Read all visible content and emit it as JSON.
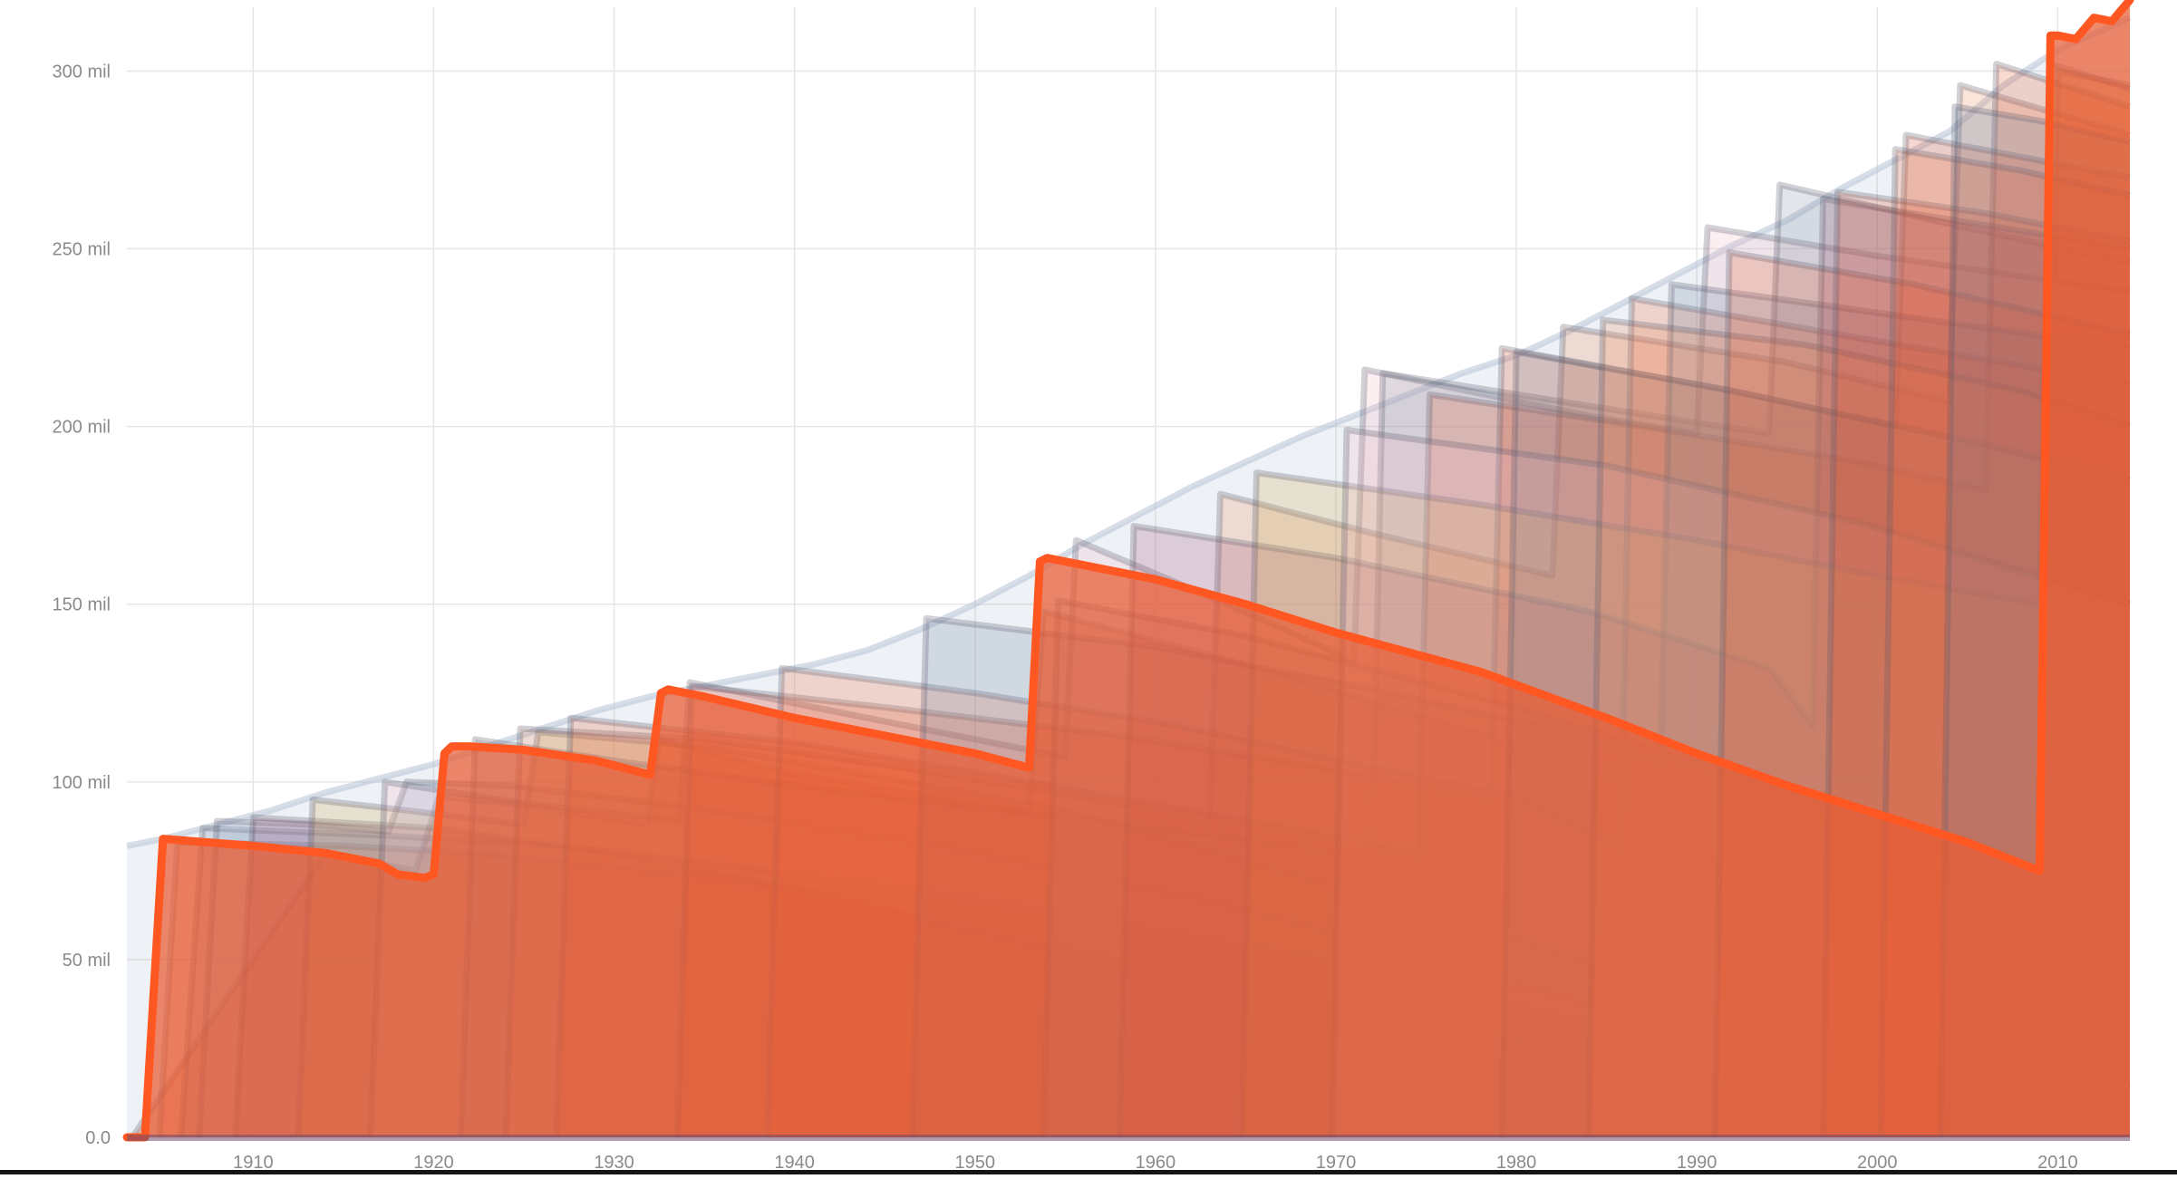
{
  "chart_data": {
    "type": "area",
    "title": "",
    "xlabel": "",
    "ylabel": "",
    "xlim": [
      1903,
      2014
    ],
    "ylim": [
      0,
      320000000
    ],
    "grid": true,
    "legend": "none",
    "x_ticks": [
      {
        "value": 1910,
        "label": "1910"
      },
      {
        "value": 1920,
        "label": "1920"
      },
      {
        "value": 1930,
        "label": "1930"
      },
      {
        "value": 1940,
        "label": "1940"
      },
      {
        "value": 1950,
        "label": "1950"
      },
      {
        "value": 1960,
        "label": "1960"
      },
      {
        "value": 1970,
        "label": "1970"
      },
      {
        "value": 1980,
        "label": "1980"
      },
      {
        "value": 1990,
        "label": "1990"
      },
      {
        "value": 2000,
        "label": "2000"
      },
      {
        "value": 2010,
        "label": "2010"
      }
    ],
    "y_ticks": [
      {
        "value": 0,
        "label": "0.0"
      },
      {
        "value": 50000000,
        "label": "50 mil"
      },
      {
        "value": 100000000,
        "label": "100 mil"
      },
      {
        "value": 150000000,
        "label": "150 mil"
      },
      {
        "value": 200000000,
        "label": "200 mil"
      },
      {
        "value": 250000000,
        "label": "250 mil"
      },
      {
        "value": 300000000,
        "label": "300 mil"
      }
    ],
    "colors": {
      "highlight": "#ff5722",
      "highlight_fill": "#e95b33",
      "grid": "#e6e6e6",
      "axis_text": "#8a8a8a",
      "background_series": [
        "#e4572e",
        "#d94f2b",
        "#f06a3c",
        "#6b7f9e",
        "#8aa0c8",
        "#9b4a6e",
        "#c9a24b",
        "#f3b8c4",
        "#7d8a9c",
        "#e88a5a"
      ]
    },
    "envelope": {
      "x": [
        1903,
        1905,
        1908,
        1911,
        1914,
        1917,
        1920,
        1923,
        1926,
        1929,
        1932,
        1935,
        1938,
        1941,
        1944,
        1947,
        1950,
        1953,
        1956,
        1959,
        1962,
        1965,
        1968,
        1971,
        1974,
        1977,
        1980,
        1983,
        1986,
        1989,
        1992,
        1995,
        1998,
        2001,
        2004,
        2007,
        2010,
        2014
      ],
      "y": [
        82000000,
        84000000,
        88000000,
        92000000,
        97000000,
        101000000,
        105000000,
        110000000,
        115000000,
        120000000,
        124000000,
        127000000,
        130000000,
        133000000,
        137000000,
        143000000,
        150000000,
        158000000,
        167000000,
        175000000,
        183000000,
        190000000,
        197000000,
        203000000,
        209000000,
        215000000,
        220000000,
        227000000,
        235000000,
        243000000,
        251000000,
        258000000,
        267000000,
        275000000,
        283000000,
        296000000,
        306000000,
        315000000
      ]
    },
    "series": [
      {
        "highlight": true,
        "x": [
          1903.0,
          1904.0,
          1905.0,
          1910.0,
          1914.0,
          1917.0,
          1918.0,
          1919.5,
          1920.0,
          1920.6,
          1921.0,
          1922.0,
          1925.0,
          1929.0,
          1932.0,
          1932.6,
          1933.0,
          1935.0,
          1940.0,
          1945.0,
          1950.0,
          1953.0,
          1953.6,
          1954.0,
          1960.0,
          1965.0,
          1970.0,
          1978.0,
          1985.0,
          1990.0,
          1995.0,
          2000.0,
          2005.0,
          2009.0,
          2009.6,
          2010.0,
          2011.0,
          2012.0,
          2013.0,
          2014.0
        ],
        "y": [
          0,
          0,
          84000000,
          82000000,
          80000000,
          77000000,
          74000000,
          73000000,
          74000000,
          108000000,
          110000000,
          110000000,
          109000000,
          106000000,
          102000000,
          125000000,
          126000000,
          124000000,
          118000000,
          113000000,
          108000000,
          104000000,
          162000000,
          163000000,
          157000000,
          150000000,
          142000000,
          131000000,
          118000000,
          108000000,
          99000000,
          91000000,
          83000000,
          75000000,
          310000000,
          310000000,
          309000000,
          315000000,
          314000000,
          320000000
        ]
      },
      {
        "x": [
          1903.3,
          1914.0,
          1919.0,
          1920.3,
          1924.0,
          1931.8,
          1932.5,
          1940.0,
          1953.0,
          1953.8,
          1965.0,
          1979.0,
          1990.0,
          2009.2,
          2010.0,
          2014.0
        ],
        "y": [
          0,
          80000000,
          75000000,
          96000000,
          94000000,
          88000000,
          112000000,
          102000000,
          92000000,
          148000000,
          133000000,
          112000000,
          96000000,
          62000000,
          300000000,
          296000000
        ]
      },
      {
        "x": [
          1904.8,
          1905.8,
          1915.0,
          1922.0,
          1932.0,
          1943.0,
          1955.0,
          1970.0,
          1985.0,
          2000.0,
          2014.0
        ],
        "y": [
          0,
          83000000,
          82000000,
          80000000,
          75000000,
          68000000,
          60000000,
          50000000,
          38000000,
          26000000,
          14000000
        ]
      },
      {
        "x": [
          1906.0,
          1907.2,
          1917.0,
          1927.0,
          1937.0,
          1949.0,
          1962.0,
          1975.0,
          1990.0,
          2003.0
        ],
        "y": [
          0,
          87000000,
          85000000,
          82000000,
          76000000,
          68000000,
          57000000,
          44000000,
          24000000,
          3000000
        ]
      },
      {
        "x": [
          1907.0,
          1908.0,
          1913.0,
          1917.5,
          1918.5,
          1924.0,
          1934.0,
          1948.0,
          1962.0,
          1978.0,
          1993.0,
          2001.0
        ],
        "y": [
          0,
          89000000,
          88000000,
          86000000,
          100000000,
          99000000,
          93000000,
          82000000,
          68000000,
          48000000,
          20000000,
          4000000
        ]
      },
      {
        "x": [
          1909.0,
          1910.0,
          1920.0,
          1930.0,
          1940.0,
          1952.0,
          1968.0,
          1985.0,
          2000.0
        ],
        "y": [
          0,
          90000000,
          87000000,
          80000000,
          70000000,
          56000000,
          40000000,
          22000000,
          6000000
        ]
      },
      {
        "x": [
          1912.5,
          1913.3,
          1918.5,
          1925.0,
          1925.8,
          1935.0,
          1955.0,
          1975.0,
          1986.0
        ],
        "y": [
          0,
          95000000,
          92000000,
          88000000,
          114000000,
          110000000,
          92000000,
          64000000,
          46000000
        ]
      },
      {
        "x": [
          1916.5,
          1917.3,
          1925.0,
          1933.6,
          1934.2,
          1946.0,
          1955.0,
          1955.6,
          1964.0,
          1971.0,
          1971.6,
          1984.0,
          1990.0,
          1990.6,
          2000.0,
          2014.0
        ],
        "y": [
          0,
          100000000,
          94000000,
          89000000,
          128000000,
          116000000,
          107000000,
          168000000,
          150000000,
          134000000,
          216000000,
          203000000,
          198000000,
          256000000,
          248000000,
          238000000
        ]
      },
      {
        "x": [
          1921.5,
          1922.3,
          1930.0,
          1940.0,
          1955.0,
          1965.0,
          1972.0,
          1972.6,
          1985.0,
          1994.0,
          1994.6,
          2004.0,
          2014.0
        ],
        "y": [
          0,
          112000000,
          106000000,
          99000000,
          90000000,
          84000000,
          80000000,
          215000000,
          205000000,
          198000000,
          268000000,
          257000000,
          246000000
        ]
      },
      {
        "x": [
          1924.0,
          1924.8,
          1935.0,
          1946.0,
          1958.0,
          1963.0,
          1963.6,
          1972.0,
          1982.0,
          1982.6,
          1995.0,
          2004.0,
          2004.6,
          2014.0
        ],
        "y": [
          0,
          115000000,
          112000000,
          104000000,
          94000000,
          88000000,
          181000000,
          170000000,
          158000000,
          228000000,
          218000000,
          207000000,
          296000000,
          282000000
        ]
      },
      {
        "x": [
          1926.8,
          1927.6,
          1940.0,
          1952.0,
          1965.0,
          1974.6,
          1975.2,
          1987.0,
          1999.0,
          2006.0,
          2006.6,
          2014.0
        ],
        "y": [
          0,
          118000000,
          111000000,
          101000000,
          89000000,
          80000000,
          209000000,
          200000000,
          190000000,
          182000000,
          302000000,
          290000000
        ]
      },
      {
        "x": [
          1933.5,
          1934.3,
          1945.0,
          1958.0,
          1968.0,
          1978.6,
          1979.2,
          1992.0,
          2001.0,
          2001.6,
          2014.0
        ],
        "y": [
          0,
          127000000,
          121000000,
          113000000,
          105000000,
          96000000,
          222000000,
          210000000,
          200000000,
          282000000,
          270000000
        ]
      },
      {
        "x": [
          1938.5,
          1939.3,
          1950.0,
          1961.0,
          1970.0,
          1980.0,
          1985.8,
          1986.4,
          2000.0,
          2014.0
        ],
        "y": [
          0,
          132000000,
          125000000,
          116000000,
          106000000,
          96000000,
          82000000,
          236000000,
          224000000,
          212000000
        ]
      },
      {
        "x": [
          1946.5,
          1947.3,
          1960.0,
          1972.0,
          1983.0,
          1988.0,
          1988.6,
          2000.0,
          2014.0
        ],
        "y": [
          0,
          146000000,
          138000000,
          126000000,
          114000000,
          106000000,
          240000000,
          232000000,
          222000000
        ]
      },
      {
        "x": [
          1953.8,
          1954.6,
          1965.0,
          1980.0,
          1997.0,
          2004.0
        ],
        "y": [
          0,
          151000000,
          141000000,
          121000000,
          94000000,
          80000000
        ]
      },
      {
        "x": [
          1958.0,
          1958.8,
          1970.0,
          1984.0,
          1994.0,
          1996.4,
          1997.0,
          2014.0
        ],
        "y": [
          0,
          172000000,
          163000000,
          148000000,
          132000000,
          116000000,
          264000000,
          250000000
        ]
      },
      {
        "x": [
          1964.8,
          1965.6,
          1978.0,
          1990.0,
          2000.0,
          2009.0,
          2009.6,
          2014.0
        ],
        "y": [
          0,
          187000000,
          178000000,
          168000000,
          158000000,
          150000000,
          302000000,
          295000000
        ]
      },
      {
        "x": [
          1969.8,
          1970.6,
          1985.0,
          1999.0,
          2014.0
        ],
        "y": [
          0,
          199000000,
          189000000,
          173000000,
          150000000
        ]
      },
      {
        "x": [
          1979.2,
          1980.0,
          1992.0,
          2005.0,
          2014.0
        ],
        "y": [
          0,
          221000000,
          210000000,
          196000000,
          185000000
        ]
      },
      {
        "x": [
          1984.0,
          1984.8,
          1996.0,
          2008.0,
          2014.0
        ],
        "y": [
          0,
          230000000,
          223000000,
          210000000,
          200000000
        ]
      },
      {
        "x": [
          1991.0,
          1991.8,
          2002.0,
          2014.0
        ],
        "y": [
          0,
          249000000,
          240000000,
          226000000
        ]
      },
      {
        "x": [
          1997.0,
          1997.8,
          2006.0,
          2014.0
        ],
        "y": [
          0,
          266000000,
          260000000,
          252000000
        ]
      },
      {
        "x": [
          2000.2,
          2001.0,
          2008.0,
          2014.0
        ],
        "y": [
          0,
          278000000,
          272000000,
          265000000
        ]
      },
      {
        "x": [
          2003.5,
          2004.3,
          2009.0,
          2014.0
        ],
        "y": [
          0,
          290000000,
          286000000,
          280000000
        ]
      }
    ]
  }
}
